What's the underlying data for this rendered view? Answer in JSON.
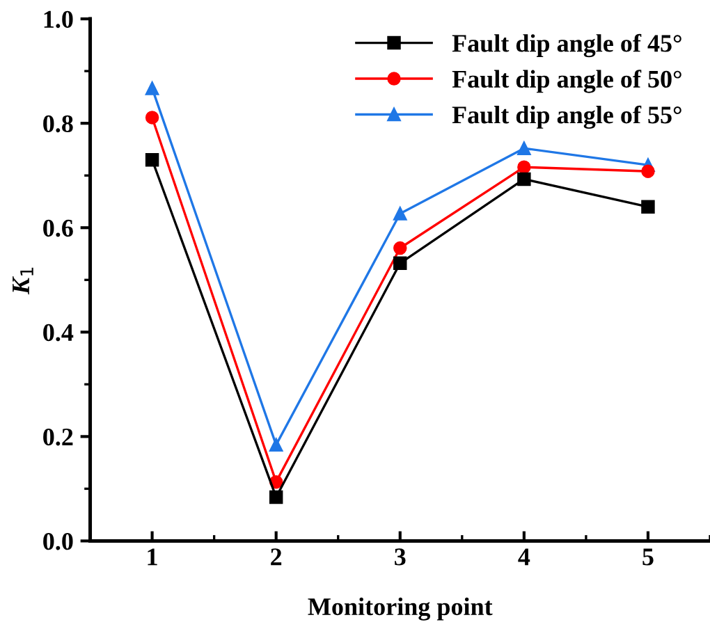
{
  "chart_data": {
    "type": "line",
    "xlabel": "Monitoring point",
    "ylabel": "K$_{1}$",
    "x": [
      1,
      2,
      3,
      4,
      5
    ],
    "series": [
      {
        "name": "Fault dip angle of 45°",
        "color": "#000000",
        "marker": "square",
        "values": [
          0.73,
          0.084,
          0.532,
          0.693,
          0.64
        ]
      },
      {
        "name": "Fault dip angle of 50°",
        "color": "#ff0000",
        "marker": "circle",
        "values": [
          0.811,
          0.113,
          0.561,
          0.716,
          0.708
        ]
      },
      {
        "name": "Fault dip angle of 55°",
        "color": "#1f77e6",
        "marker": "triangle",
        "values": [
          0.867,
          0.184,
          0.627,
          0.752,
          0.72
        ]
      }
    ],
    "xlim": [
      0.5,
      5.5
    ],
    "xticks": [
      1,
      2,
      3,
      4,
      5
    ],
    "ylim": [
      0.0,
      1.0
    ],
    "yticks": [
      {
        "value": 0.0,
        "label": "0.0"
      },
      {
        "value": 0.2,
        "label": "0.2"
      },
      {
        "value": 0.4,
        "label": "0.4"
      },
      {
        "value": 0.6,
        "label": "0.6"
      },
      {
        "value": 0.8,
        "label": "0.8"
      },
      {
        "value": 1.0,
        "label": "1.0"
      }
    ],
    "grid": false,
    "legend": "top right",
    "line_style": "solid"
  }
}
